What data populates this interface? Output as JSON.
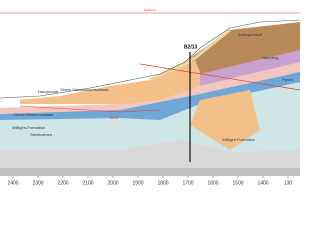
{
  "section": {
    "borehole": "B2/13",
    "summit": "Zellerguetsch",
    "top_line": "Referenz",
    "labels": [
      "Hangschutt",
      "Obere Süsswassermolasse",
      "Obere Marinemolasse",
      "Willigen-Formation",
      "Steinbalmen",
      "Willigen Formation",
      "BOK",
      "Hauptrog",
      "Flysch"
    ]
  },
  "axis": {
    "ticks": [
      "500",
      "2400",
      "2300",
      "2200",
      "2100",
      "2000",
      "1900",
      "1800",
      "1700",
      "1600",
      "1500",
      "1400",
      "130"
    ]
  }
}
